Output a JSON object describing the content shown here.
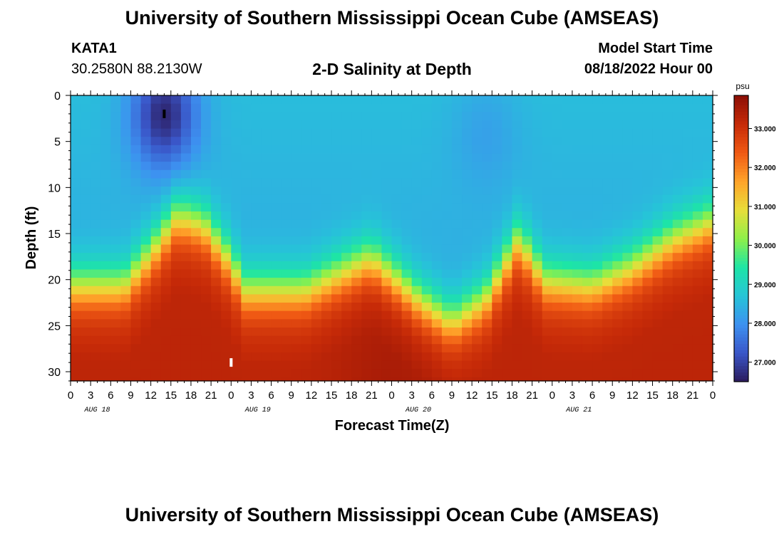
{
  "header": {
    "title": "University of Southern Mississippi Ocean Cube (AMSEAS)",
    "station_id": "KATA1",
    "station_coords": "30.2580N  88.2130W",
    "subtitle": "2-D Salinity at Depth",
    "model_start_label": "Model Start Time",
    "model_start_value": "08/18/2022 Hour 00"
  },
  "footer": {
    "title": "University of Southern Mississippi Ocean Cube (AMSEAS)"
  },
  "chart_data": {
    "type": "heatmap",
    "title": "2-D Salinity at Depth",
    "xlabel": "Forecast Time(Z)",
    "ylabel": "Depth (ft)",
    "x_tick_labels": [
      "0",
      "3",
      "6",
      "9",
      "12",
      "15",
      "18",
      "21",
      "0",
      "3",
      "6",
      "9",
      "12",
      "15",
      "18",
      "21",
      "0",
      "3",
      "6",
      "9",
      "12",
      "15",
      "18",
      "21",
      "0",
      "3",
      "6",
      "9",
      "12",
      "15",
      "18",
      "21",
      "0"
    ],
    "date_labels": [
      {
        "label": "AUG 18",
        "hour": 4
      },
      {
        "label": "AUG 19",
        "hour": 28
      },
      {
        "label": "AUG 20",
        "hour": 52
      },
      {
        "label": "AUG 21",
        "hour": 76
      }
    ],
    "xlim": [
      0,
      96
    ],
    "ylim": [
      0,
      31
    ],
    "y_ticks": [
      0,
      5,
      10,
      15,
      20,
      25,
      30
    ],
    "colorbar": {
      "unit": "psu",
      "min": 26.5,
      "max": 33.85,
      "ticks": [
        "27.000",
        "28.000",
        "29.000",
        "30.000",
        "31.000",
        "32.000",
        "33.000"
      ],
      "colors": [
        "#2b1a5b",
        "#3a56c8",
        "#3d91f0",
        "#26c4d8",
        "#1de5a6",
        "#8ef04a",
        "#e8de3a",
        "#ffa42a",
        "#f05a14",
        "#c62a08",
        "#8c0f06"
      ]
    },
    "interface_depth_ft": [
      {
        "hour": 0,
        "depth": 21
      },
      {
        "hour": 8,
        "depth": 21
      },
      {
        "hour": 12,
        "depth": 17.5
      },
      {
        "hour": 16,
        "depth": 13.5
      },
      {
        "hour": 20,
        "depth": 14.5
      },
      {
        "hour": 24,
        "depth": 18.5
      },
      {
        "hour": 26,
        "depth": 21.5
      },
      {
        "hour": 35,
        "depth": 21.5
      },
      {
        "hour": 45,
        "depth": 18
      },
      {
        "hour": 49,
        "depth": 20.5
      },
      {
        "hour": 52,
        "depth": 22.5
      },
      {
        "hour": 57,
        "depth": 25
      },
      {
        "hour": 62,
        "depth": 22.5
      },
      {
        "hour": 67,
        "depth": 16
      },
      {
        "hour": 71,
        "depth": 20.5
      },
      {
        "hour": 78,
        "depth": 21
      },
      {
        "hour": 84,
        "depth": 19
      },
      {
        "hour": 90,
        "depth": 16
      },
      {
        "hour": 96,
        "depth": 14
      }
    ],
    "low_salinity_pool": {
      "hour": 14,
      "depth": 2,
      "min_psu": 26.7
    },
    "markers": [
      {
        "name": "min-marker",
        "hour": 14,
        "depth": 2,
        "color": "#000000"
      },
      {
        "name": "max-marker",
        "hour": 24,
        "depth": 29,
        "color": "#ffffff"
      }
    ]
  }
}
